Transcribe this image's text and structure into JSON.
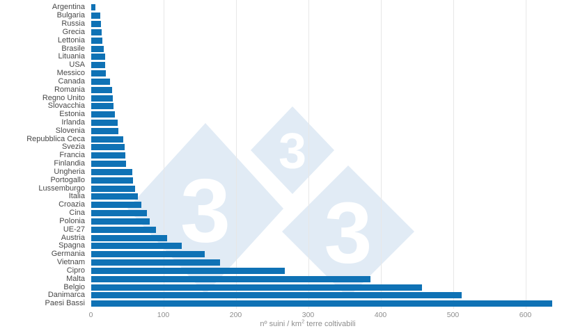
{
  "chart_data": {
    "type": "bar",
    "orientation": "horizontal",
    "title": "",
    "xlabel": "nº suini / km² terre coltivabili",
    "xlabel_prefix": "nº suini / km",
    "xlabel_sup": "2",
    "xlabel_suffix": " terre coltivabili",
    "xlim": [
      0,
      655
    ],
    "xticks": [
      0,
      100,
      200,
      300,
      400,
      500,
      600
    ],
    "grid": "vertical-only",
    "legend": "none",
    "categories": [
      "Argentina",
      "Bulgaria",
      "Russia",
      "Grecia",
      "Lettonia",
      "Brasile",
      "Lituania",
      "USA",
      "Messico",
      "Canada",
      "Romania",
      "Regno Unito",
      "Slovacchia",
      "Estonia",
      "Irlanda",
      "Slovenia",
      "Repubblica Ceca",
      "Svezia",
      "Francia",
      "Finlandia",
      "Ungheria",
      "Portogallo",
      "Lussemburgo",
      "Italia",
      "Croazia",
      "Cina",
      "Polonia",
      "UE-27",
      "Austria",
      "Spagna",
      "Germania",
      "Vietnam",
      "Cipro",
      "Malta",
      "Belgio",
      "Danimarca",
      "Paesi Bassi"
    ],
    "values": [
      6,
      13,
      14,
      15,
      16,
      18,
      20,
      20,
      21,
      26,
      29,
      30,
      31,
      33,
      37,
      38,
      45,
      47,
      48,
      49,
      57,
      58,
      61,
      65,
      70,
      77,
      81,
      90,
      105,
      125,
      157,
      178,
      268,
      386,
      457,
      512,
      637
    ]
  },
  "watermark": {
    "digit": "3"
  },
  "colors": {
    "bar": "#0f72b5",
    "watermark_fill": "#e1ebf5",
    "watermark_text": "#ffffff",
    "gridline": "#e7e7e7",
    "category_label": "#474747",
    "axis_text": "#8d8d8d"
  }
}
